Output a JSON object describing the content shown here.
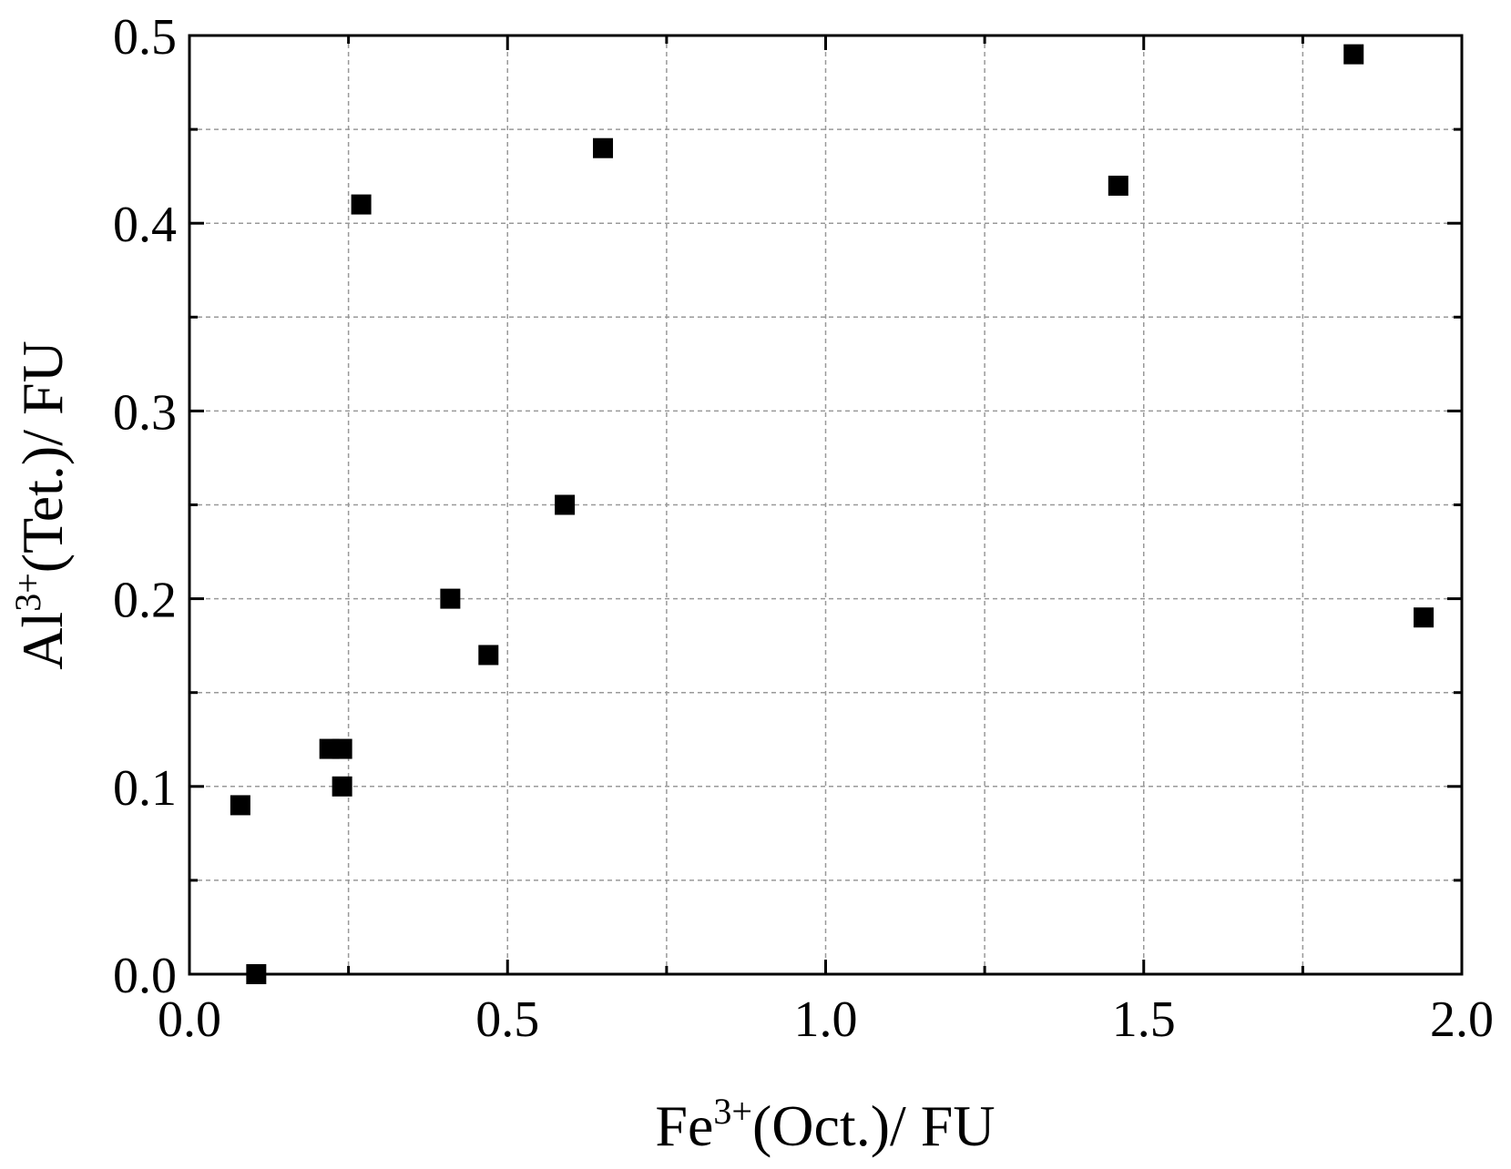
{
  "chart_data": {
    "type": "scatter",
    "xlabel": {
      "base": "Fe",
      "sup": "3+",
      "rest": "(Oct.)/ FU"
    },
    "ylabel": {
      "base": "Al",
      "sup": "3+",
      "rest": "(Tet.)/ FU"
    },
    "x": [
      0.08,
      0.105,
      0.22,
      0.24,
      0.24,
      0.27,
      0.41,
      0.47,
      0.59,
      0.65,
      1.46,
      1.83,
      1.94
    ],
    "values": [
      0.09,
      0.0,
      0.12,
      0.12,
      0.1,
      0.41,
      0.2,
      0.17,
      0.25,
      0.44,
      0.42,
      0.49,
      0.19
    ],
    "color": "#000000",
    "xlim": [
      0,
      2
    ],
    "ylim": [
      0,
      0.5
    ],
    "xticks": [
      {
        "value": 0,
        "label": "0.0"
      },
      0.5,
      {
        "value": 1,
        "label": "1.0"
      },
      1.5,
      {
        "value": 2,
        "label": "2.0"
      }
    ],
    "yticks": [
      {
        "value": 0,
        "label": "0.0"
      },
      0.1,
      0.2,
      0.3,
      0.4,
      0.5
    ],
    "xminorticks": [
      0.25,
      0.75,
      1.25,
      1.75
    ],
    "yminorticks": [
      0.05,
      0.15,
      0.25,
      0.35,
      0.45
    ],
    "grid": true
  }
}
